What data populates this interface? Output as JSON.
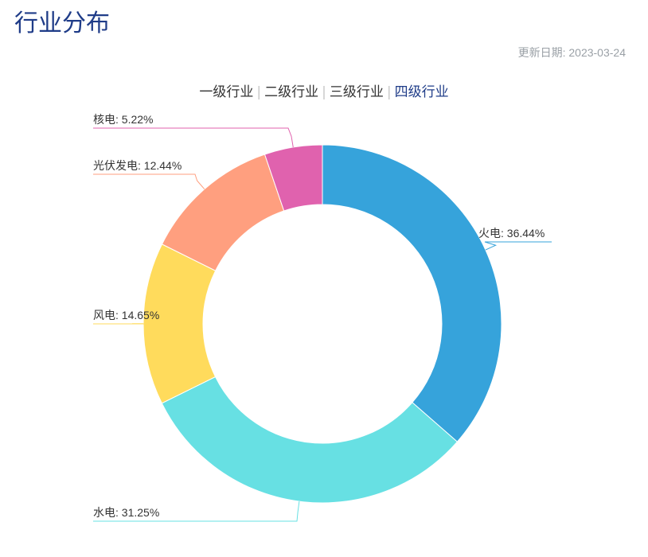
{
  "page": {
    "title": "行业分布",
    "update_label": "更新日期: 2023-03-24"
  },
  "tabs": [
    {
      "label": "一级行业",
      "active": false
    },
    {
      "label": "二级行业",
      "active": false
    },
    {
      "label": "三级行业",
      "active": false
    },
    {
      "label": "四级行业",
      "active": true
    }
  ],
  "colors": {
    "title": "#1f3c88",
    "active_tab": "#1f3c88"
  },
  "chart_data": {
    "type": "pie",
    "donut": true,
    "label_format": "{name}: {value}%",
    "slices": [
      {
        "name": "火电",
        "value": 36.44,
        "color": "#36a3db"
      },
      {
        "name": "水电",
        "value": 31.25,
        "color": "#67e0e3"
      },
      {
        "name": "风电",
        "value": 14.65,
        "color": "#ffdb5c"
      },
      {
        "name": "光伏发电",
        "value": 12.44,
        "color": "#ff9f7f"
      },
      {
        "name": "核电",
        "value": 5.22,
        "color": "#e062ae"
      }
    ]
  }
}
